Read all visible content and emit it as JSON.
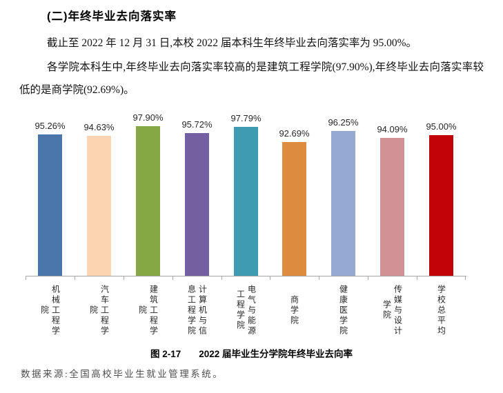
{
  "page": {
    "heading": "(二)年终毕业去向落实率",
    "paragraph1": "截止至 2022 年 12 月 31 日,本校 2022 届本科生年终毕业去向落实率为 95.00%。",
    "paragraph2": "各学院本科生中,年终毕业去向落实率较高的是建筑工程学院(97.90%),年终毕业去向落实率较低的是商学院(92.69%)。",
    "caption_label": "图 2-17",
    "caption_title": "2022 届毕业生分学院年终毕业去向率",
    "source_note": "数据来源:全国高校毕业生就业管理系统。"
  },
  "chart_data": {
    "type": "bar",
    "title": "图 2-17 2022 届毕业生分学院年终毕业去向率",
    "categories": [
      "机械工程学院",
      "汽车工程学院",
      "建筑工程学院",
      "计算机与信息工程学院",
      "电气与能源工程学院",
      "商学院",
      "健康医学院",
      "传媒与设计学院",
      "学校总平均"
    ],
    "values": [
      95.26,
      94.63,
      97.9,
      95.72,
      97.79,
      92.69,
      96.25,
      94.09,
      95.0
    ],
    "data_labels": [
      "95.26%",
      "94.63%",
      "97.90%",
      "95.72%",
      "97.79%",
      "92.69%",
      "96.25%",
      "94.09%",
      "95.00%"
    ],
    "bar_colors": [
      "#4a76ac",
      "#fbd4b2",
      "#85a845",
      "#7460a0",
      "#3f9bb1",
      "#dd8b3f",
      "#95a9d2",
      "#d19295",
      "#c00407"
    ],
    "xlabel": "",
    "ylabel": "",
    "y_axis_visible": false,
    "gridlines": false,
    "legend": "none",
    "axis_color": "#a6a6a6",
    "data_label_color": "#262626"
  }
}
